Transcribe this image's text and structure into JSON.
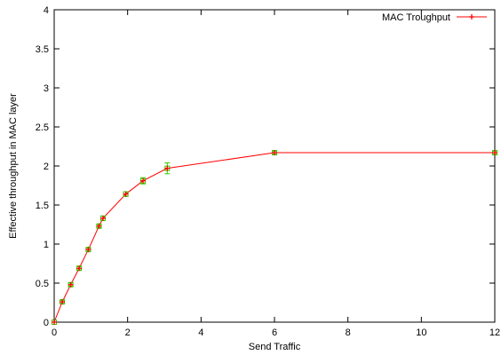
{
  "chart_data": {
    "type": "line",
    "title": "",
    "xlabel": "Send Traffic",
    "ylabel": "Effective throughput in MAC layer",
    "xlim": [
      0,
      12
    ],
    "ylim": [
      0,
      4
    ],
    "xticks": [
      0,
      2,
      4,
      6,
      8,
      10,
      12
    ],
    "yticks": [
      0,
      0.5,
      1,
      1.5,
      2,
      2.5,
      3,
      3.5,
      4
    ],
    "xtick_labels": [
      "0",
      "2",
      "4",
      "6",
      "8",
      "10",
      "12"
    ],
    "ytick_labels": [
      "0",
      "0.5",
      "1",
      "1.5",
      "2",
      "2.5",
      "3",
      "3.5",
      "4"
    ],
    "grid": false,
    "legend_position": "top-right",
    "series": [
      {
        "name": "MAC Troughput",
        "color": "#ff0000",
        "errorbar_color": "#33cc00",
        "marker": "plus",
        "x": [
          0,
          0.22,
          0.45,
          0.68,
          0.93,
          1.22,
          1.33,
          1.95,
          2.42,
          3.08,
          6.0,
          12.0
        ],
        "y": [
          0,
          0.26,
          0.48,
          0.69,
          0.93,
          1.23,
          1.33,
          1.64,
          1.81,
          1.97,
          2.17,
          2.17
        ],
        "yerr": [
          0,
          0.02,
          0.02,
          0.02,
          0.02,
          0.02,
          0.03,
          0.03,
          0.04,
          0.07,
          0.02,
          0.02
        ]
      }
    ]
  }
}
